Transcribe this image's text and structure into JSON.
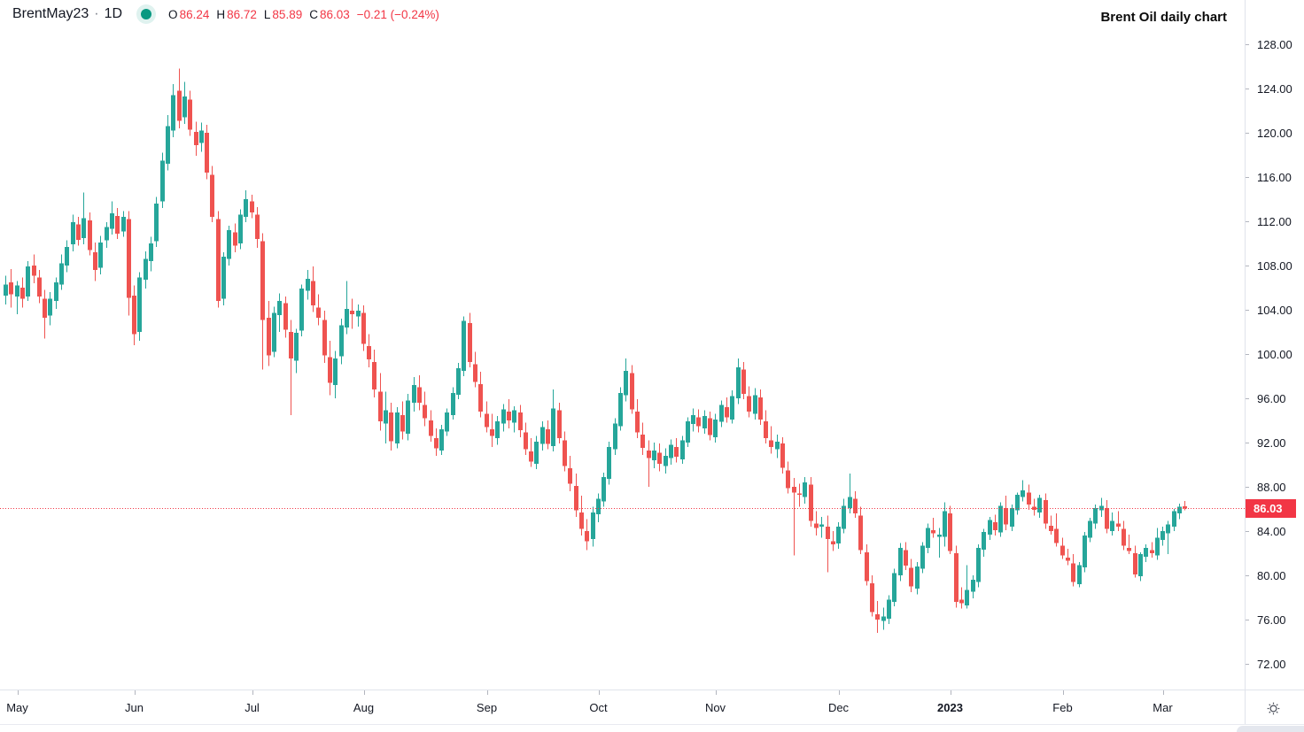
{
  "legend": {
    "symbol": "BrentMay23",
    "separator": "·",
    "interval": "1D",
    "ohlc": {
      "o_label": "O",
      "o_value": "86.24",
      "h_label": "H",
      "h_value": "86.72",
      "l_label": "L",
      "l_value": "85.89",
      "c_label": "C",
      "c_value": "86.03"
    },
    "change": "−0.21 (−0.24%)"
  },
  "annotation": {
    "text": "Brent Oil daily chart"
  },
  "price_axis": {
    "tick_values": [
      128,
      124,
      120,
      116,
      112,
      108,
      104,
      100,
      96,
      92,
      88,
      84,
      80,
      76,
      72
    ],
    "last_price_label": "86.03"
  },
  "time_axis": {
    "ticks": [
      {
        "index": 2,
        "label": "May",
        "bold": false
      },
      {
        "index": 23,
        "label": "Jun",
        "bold": false
      },
      {
        "index": 44,
        "label": "Jul",
        "bold": false
      },
      {
        "index": 64,
        "label": "Aug",
        "bold": false
      },
      {
        "index": 86,
        "label": "Sep",
        "bold": false
      },
      {
        "index": 106,
        "label": "Oct",
        "bold": false
      },
      {
        "index": 127,
        "label": "Nov",
        "bold": false
      },
      {
        "index": 149,
        "label": "Dec",
        "bold": false
      },
      {
        "index": 169,
        "label": "2023",
        "bold": true
      },
      {
        "index": 189,
        "label": "Feb",
        "bold": false
      },
      {
        "index": 207,
        "label": "Mar",
        "bold": false
      }
    ]
  },
  "colors": {
    "up": "#26a69a",
    "down": "#ef5350",
    "accent_red": "#f23645",
    "text": "#131722",
    "axis_line": "#e0e3eb",
    "tick_mark": "#b2b5be",
    "status_dot": "#089981"
  },
  "chart_data": {
    "type": "candlestick",
    "title": "Brent Oil daily chart",
    "symbol": "BrentMay23",
    "interval": "1D",
    "legend_position": "top-left",
    "grid": false,
    "price_range": [
      72,
      128
    ],
    "price_tick_step": 4,
    "price_line": 86.03,
    "x_axis": "daily bars, May 2022 – Mar 2023",
    "candles_format": [
      "open",
      "high",
      "low",
      "close"
    ],
    "candles": [
      [
        105.3,
        107.1,
        104.5,
        106.3
      ],
      [
        106.5,
        107.7,
        104.2,
        105.4
      ],
      [
        105.2,
        106.6,
        103.6,
        106.2
      ],
      [
        106.0,
        106.9,
        104.2,
        105.0
      ],
      [
        105.2,
        108.4,
        104.8,
        107.9
      ],
      [
        108.0,
        109.0,
        106.4,
        107.1
      ],
      [
        106.9,
        107.6,
        104.6,
        105.2
      ],
      [
        105.0,
        105.8,
        101.4,
        103.3
      ],
      [
        103.5,
        105.6,
        102.6,
        105.0
      ],
      [
        104.8,
        106.9,
        104.1,
        106.5
      ],
      [
        106.3,
        109.0,
        105.8,
        108.2
      ],
      [
        108.0,
        110.3,
        107.4,
        109.7
      ],
      [
        109.9,
        112.6,
        109.3,
        111.9
      ],
      [
        111.7,
        112.4,
        109.8,
        110.3
      ],
      [
        110.5,
        114.6,
        109.9,
        112.3
      ],
      [
        112.1,
        112.8,
        108.9,
        109.4
      ],
      [
        109.2,
        110.1,
        106.6,
        107.6
      ],
      [
        107.8,
        110.7,
        107.2,
        110.1
      ],
      [
        110.3,
        111.9,
        109.6,
        111.5
      ],
      [
        111.3,
        113.8,
        110.8,
        112.7
      ],
      [
        112.5,
        113.2,
        110.4,
        110.9
      ],
      [
        111.1,
        112.9,
        110.6,
        112.4
      ],
      [
        112.2,
        112.9,
        103.5,
        105.1
      ],
      [
        105.3,
        106.2,
        100.8,
        101.8
      ],
      [
        102.0,
        107.4,
        101.2,
        106.9
      ],
      [
        106.7,
        109.3,
        105.9,
        108.6
      ],
      [
        108.4,
        110.6,
        107.5,
        110.0
      ],
      [
        110.2,
        114.2,
        109.7,
        113.6
      ],
      [
        113.8,
        118.2,
        113.2,
        117.5
      ],
      [
        117.2,
        121.6,
        116.6,
        120.6
      ],
      [
        120.2,
        124.4,
        119.6,
        123.4
      ],
      [
        123.8,
        125.8,
        120.4,
        121.1
      ],
      [
        121.4,
        124.6,
        120.8,
        123.3
      ],
      [
        123.0,
        123.8,
        119.7,
        120.3
      ],
      [
        120.1,
        121.0,
        117.9,
        118.9
      ],
      [
        119.1,
        120.9,
        118.3,
        120.2
      ],
      [
        120.0,
        120.7,
        115.8,
        116.4
      ],
      [
        116.2,
        117.0,
        111.9,
        112.4
      ],
      [
        112.2,
        112.9,
        104.2,
        104.8
      ],
      [
        105.0,
        109.2,
        104.4,
        108.8
      ],
      [
        108.6,
        111.6,
        108.0,
        111.2
      ],
      [
        111.0,
        111.8,
        109.2,
        109.8
      ],
      [
        110.0,
        113.1,
        109.5,
        112.6
      ],
      [
        112.4,
        114.8,
        111.9,
        114.0
      ],
      [
        113.8,
        114.4,
        112.3,
        112.8
      ],
      [
        112.6,
        113.3,
        109.6,
        110.4
      ],
      [
        110.2,
        110.9,
        98.6,
        103.1
      ],
      [
        103.3,
        104.8,
        98.9,
        99.9
      ],
      [
        100.2,
        104.3,
        99.7,
        103.7
      ],
      [
        103.5,
        105.5,
        102.0,
        104.8
      ],
      [
        104.6,
        105.2,
        101.5,
        102.2
      ],
      [
        102.0,
        103.1,
        94.5,
        99.6
      ],
      [
        99.4,
        102.3,
        98.3,
        101.9
      ],
      [
        102.1,
        106.3,
        101.6,
        105.9
      ],
      [
        105.7,
        107.6,
        104.9,
        106.8
      ],
      [
        106.6,
        107.9,
        103.8,
        104.4
      ],
      [
        104.2,
        105.4,
        102.6,
        103.3
      ],
      [
        103.1,
        103.9,
        99.2,
        99.9
      ],
      [
        99.7,
        101.2,
        96.3,
        97.4
      ],
      [
        97.2,
        100.3,
        96.0,
        99.6
      ],
      [
        99.8,
        103.2,
        99.1,
        102.6
      ],
      [
        102.4,
        106.6,
        101.8,
        104.1
      ],
      [
        103.9,
        105.0,
        102.3,
        103.6
      ],
      [
        103.4,
        104.5,
        102.5,
        103.9
      ],
      [
        103.7,
        104.4,
        100.3,
        100.9
      ],
      [
        100.7,
        101.8,
        98.8,
        99.5
      ],
      [
        99.3,
        100.4,
        96.1,
        96.8
      ],
      [
        96.6,
        98.3,
        93.1,
        93.9
      ],
      [
        93.7,
        96.6,
        91.9,
        94.9
      ],
      [
        94.7,
        95.6,
        91.3,
        92.1
      ],
      [
        91.9,
        95.2,
        91.5,
        94.7
      ],
      [
        94.5,
        95.7,
        92.3,
        93.0
      ],
      [
        92.8,
        96.4,
        92.2,
        95.8
      ],
      [
        95.6,
        97.9,
        94.8,
        97.2
      ],
      [
        97.0,
        98.1,
        94.9,
        95.6
      ],
      [
        95.4,
        96.6,
        93.5,
        94.2
      ],
      [
        94.0,
        94.9,
        92.1,
        92.6
      ],
      [
        92.4,
        93.3,
        90.8,
        91.5
      ],
      [
        91.3,
        93.6,
        90.9,
        93.2
      ],
      [
        93.0,
        95.1,
        92.6,
        94.7
      ],
      [
        94.5,
        97.0,
        94.1,
        96.5
      ],
      [
        96.3,
        99.2,
        95.9,
        98.7
      ],
      [
        98.5,
        103.4,
        98.0,
        103.0
      ],
      [
        102.8,
        103.7,
        98.8,
        99.3
      ],
      [
        99.1,
        100.2,
        97.0,
        97.5
      ],
      [
        97.3,
        98.4,
        94.3,
        94.8
      ],
      [
        94.6,
        95.7,
        92.9,
        93.4
      ],
      [
        93.2,
        94.6,
        91.6,
        92.6
      ],
      [
        92.4,
        94.4,
        91.8,
        93.9
      ],
      [
        93.7,
        95.5,
        93.0,
        95.0
      ],
      [
        94.8,
        95.9,
        93.3,
        94.0
      ],
      [
        93.8,
        95.3,
        92.9,
        94.9
      ],
      [
        94.7,
        95.4,
        92.5,
        93.1
      ],
      [
        92.9,
        93.8,
        90.9,
        91.4
      ],
      [
        91.2,
        92.4,
        89.8,
        90.3
      ],
      [
        90.1,
        92.6,
        89.6,
        92.1
      ],
      [
        91.9,
        93.9,
        91.3,
        93.4
      ],
      [
        93.2,
        94.0,
        91.4,
        91.9
      ],
      [
        91.7,
        96.8,
        91.2,
        95.1
      ],
      [
        94.9,
        95.6,
        91.9,
        92.4
      ],
      [
        92.2,
        93.0,
        89.4,
        89.9
      ],
      [
        89.7,
        90.8,
        87.6,
        88.3
      ],
      [
        88.1,
        89.2,
        85.3,
        85.9
      ],
      [
        85.7,
        87.2,
        83.6,
        84.2
      ],
      [
        84.0,
        85.1,
        82.3,
        83.1
      ],
      [
        83.3,
        86.2,
        82.6,
        85.7
      ],
      [
        85.5,
        87.4,
        84.8,
        86.9
      ],
      [
        86.7,
        89.3,
        86.2,
        88.9
      ],
      [
        88.7,
        92.1,
        88.2,
        91.6
      ],
      [
        91.4,
        94.2,
        90.9,
        93.7
      ],
      [
        93.5,
        97.0,
        93.1,
        96.5
      ],
      [
        96.3,
        99.6,
        95.7,
        98.5
      ],
      [
        98.3,
        99.0,
        94.6,
        95.0
      ],
      [
        94.8,
        95.9,
        92.4,
        92.9
      ],
      [
        92.7,
        93.8,
        90.9,
        91.5
      ],
      [
        91.3,
        92.2,
        88.0,
        90.6
      ],
      [
        90.4,
        92.0,
        89.7,
        91.3
      ],
      [
        91.1,
        91.9,
        89.4,
        90.1
      ],
      [
        89.9,
        91.5,
        89.2,
        90.8
      ],
      [
        90.6,
        92.3,
        90.0,
        91.8
      ],
      [
        91.6,
        92.4,
        90.2,
        90.7
      ],
      [
        90.5,
        92.6,
        90.1,
        92.2
      ],
      [
        92.0,
        94.3,
        91.6,
        93.9
      ],
      [
        93.7,
        95.1,
        93.0,
        94.5
      ],
      [
        94.3,
        95.0,
        92.9,
        93.5
      ],
      [
        93.3,
        94.9,
        92.8,
        94.4
      ],
      [
        94.2,
        94.8,
        92.2,
        92.7
      ],
      [
        92.5,
        94.6,
        92.0,
        94.1
      ],
      [
        93.9,
        95.8,
        93.4,
        95.4
      ],
      [
        95.2,
        96.1,
        93.8,
        94.3
      ],
      [
        94.1,
        96.7,
        93.7,
        96.2
      ],
      [
        96.0,
        99.6,
        95.5,
        98.8
      ],
      [
        98.6,
        99.3,
        95.9,
        96.4
      ],
      [
        96.2,
        97.1,
        94.3,
        94.8
      ],
      [
        94.6,
        96.9,
        94.1,
        96.3
      ],
      [
        96.1,
        96.8,
        93.6,
        94.1
      ],
      [
        93.9,
        94.9,
        91.9,
        92.4
      ],
      [
        92.2,
        93.5,
        91.0,
        91.6
      ],
      [
        91.4,
        92.7,
        90.6,
        92.1
      ],
      [
        91.9,
        92.5,
        89.2,
        89.7
      ],
      [
        89.5,
        90.3,
        87.4,
        87.9
      ],
      [
        88.0,
        88.8,
        81.8,
        87.5
      ],
      [
        87.4,
        88.3,
        86.2,
        87.3
      ],
      [
        87.1,
        88.9,
        86.5,
        88.4
      ],
      [
        88.2,
        88.9,
        84.4,
        84.9
      ],
      [
        84.7,
        85.8,
        83.6,
        84.3
      ],
      [
        84.4,
        85.3,
        83.4,
        84.6
      ],
      [
        84.4,
        85.4,
        80.3,
        83.3
      ],
      [
        83.1,
        84.0,
        82.2,
        82.8
      ],
      [
        82.9,
        84.8,
        82.4,
        84.4
      ],
      [
        84.2,
        86.9,
        83.8,
        86.3
      ],
      [
        86.1,
        89.2,
        85.6,
        87.1
      ],
      [
        86.9,
        87.6,
        85.2,
        85.6
      ],
      [
        85.4,
        86.2,
        81.9,
        82.3
      ],
      [
        82.1,
        82.8,
        79.1,
        79.5
      ],
      [
        79.3,
        80.0,
        76.3,
        76.7
      ],
      [
        76.5,
        77.7,
        74.8,
        76.0
      ],
      [
        75.9,
        77.1,
        75.1,
        76.3
      ],
      [
        76.1,
        78.2,
        75.6,
        77.8
      ],
      [
        77.6,
        80.6,
        77.2,
        80.2
      ],
      [
        80.0,
        82.9,
        79.5,
        82.5
      ],
      [
        82.3,
        83.0,
        80.5,
        80.9
      ],
      [
        80.7,
        81.5,
        78.5,
        79.0
      ],
      [
        78.8,
        81.2,
        78.3,
        80.8
      ],
      [
        80.6,
        83.0,
        80.2,
        82.7
      ],
      [
        82.5,
        84.7,
        82.0,
        84.3
      ],
      [
        84.1,
        85.2,
        83.4,
        83.8
      ],
      [
        83.5,
        84.3,
        81.6,
        83.7
      ],
      [
        83.5,
        86.6,
        82.6,
        85.8
      ],
      [
        85.6,
        86.3,
        81.9,
        82.2
      ],
      [
        82.0,
        82.7,
        77.1,
        77.6
      ],
      [
        77.8,
        78.9,
        77.0,
        77.5
      ],
      [
        77.3,
        80.9,
        77.0,
        78.7
      ],
      [
        78.5,
        80.0,
        77.9,
        79.6
      ],
      [
        79.4,
        82.8,
        78.9,
        82.5
      ],
      [
        82.3,
        84.2,
        81.7,
        83.9
      ],
      [
        83.7,
        85.3,
        83.2,
        85.0
      ],
      [
        84.8,
        85.5,
        83.6,
        84.1
      ],
      [
        83.9,
        86.6,
        83.5,
        86.3
      ],
      [
        86.1,
        87.2,
        84.1,
        84.6
      ],
      [
        84.4,
        86.4,
        84.0,
        86.1
      ],
      [
        85.9,
        87.5,
        85.5,
        87.3
      ],
      [
        87.1,
        88.6,
        86.7,
        87.7
      ],
      [
        87.5,
        88.2,
        85.9,
        86.4
      ],
      [
        86.2,
        86.9,
        85.4,
        85.9
      ],
      [
        85.7,
        87.3,
        85.2,
        87.0
      ],
      [
        86.8,
        87.4,
        84.2,
        84.7
      ],
      [
        84.5,
        85.4,
        83.7,
        84.0
      ],
      [
        84.2,
        85.6,
        82.6,
        82.9
      ],
      [
        82.7,
        83.4,
        81.5,
        81.8
      ],
      [
        81.6,
        82.4,
        80.9,
        81.3
      ],
      [
        81.1,
        81.9,
        79.0,
        79.4
      ],
      [
        79.2,
        81.2,
        78.9,
        80.9
      ],
      [
        80.7,
        83.9,
        80.3,
        83.6
      ],
      [
        83.4,
        85.2,
        83.0,
        84.9
      ],
      [
        84.7,
        86.4,
        84.2,
        86.1
      ],
      [
        85.9,
        87.0,
        85.3,
        86.3
      ],
      [
        86.1,
        86.8,
        83.8,
        84.2
      ],
      [
        84.0,
        85.7,
        83.6,
        84.9
      ],
      [
        84.7,
        85.8,
        84.0,
        84.4
      ],
      [
        84.2,
        84.9,
        82.3,
        82.7
      ],
      [
        82.5,
        83.7,
        81.9,
        82.2
      ],
      [
        82.0,
        82.7,
        79.8,
        80.1
      ],
      [
        79.9,
        82.1,
        79.5,
        81.9
      ],
      [
        81.7,
        82.8,
        81.2,
        82.5
      ],
      [
        82.3,
        83.0,
        81.6,
        82.0
      ],
      [
        81.8,
        84.3,
        81.4,
        83.4
      ],
      [
        83.2,
        84.4,
        82.7,
        84.0
      ],
      [
        83.8,
        84.9,
        81.9,
        84.6
      ],
      [
        84.4,
        86.0,
        84.0,
        85.8
      ],
      [
        85.6,
        86.5,
        85.1,
        86.2
      ],
      [
        86.24,
        86.72,
        85.89,
        86.03
      ]
    ]
  }
}
